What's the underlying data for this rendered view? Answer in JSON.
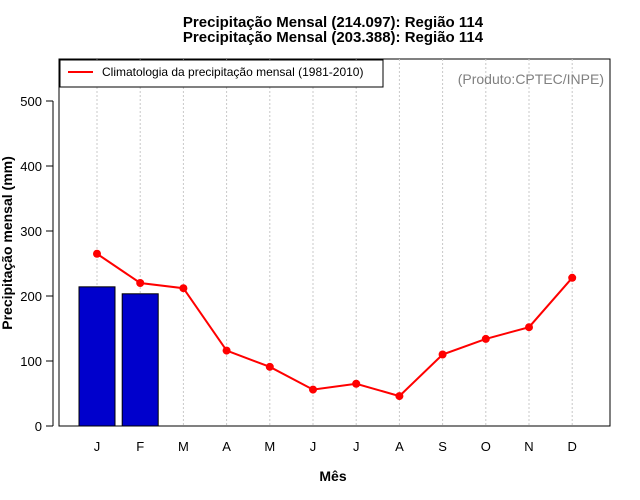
{
  "chart_data": {
    "type": "bar+line",
    "titles": [
      "Precipitação Mensal (214.097): Região 114",
      "Precipitação Mensal (203.388): Região 114"
    ],
    "xlabel": "Mês",
    "ylabel": "Precipitação mensal (mm)",
    "categories": [
      "J",
      "F",
      "M",
      "A",
      "M",
      "J",
      "J",
      "A",
      "S",
      "O",
      "N",
      "D"
    ],
    "ylim": [
      0,
      560
    ],
    "yticks": [
      0,
      100,
      200,
      300,
      400,
      500
    ],
    "grid": "vertical dotted at each month",
    "bars": {
      "color": "#0000cc",
      "values": [
        214.097,
        203.388,
        null,
        null,
        null,
        null,
        null,
        null,
        null,
        null,
        null,
        null
      ]
    },
    "series": [
      {
        "name": "Climatologia da precipitação mensal (1981-2010)",
        "type": "line",
        "color": "#ff0000",
        "values": [
          265,
          220,
          212,
          116,
          91,
          56,
          65,
          46,
          110,
          134,
          152,
          228
        ]
      }
    ],
    "legend_position": "top-left",
    "annotation": "(Produto:CPTEC/INPE)"
  }
}
